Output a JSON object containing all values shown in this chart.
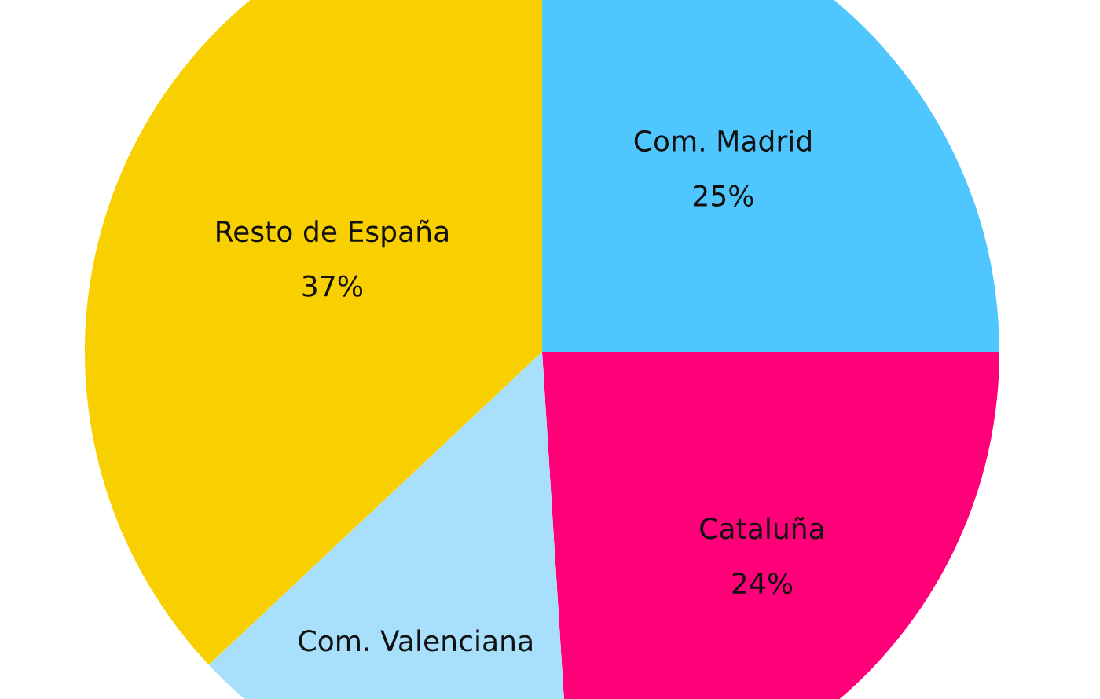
{
  "chart_data": {
    "type": "pie",
    "categories": [
      "Com. Madrid",
      "Cataluña",
      "Com. Valenciana",
      "Resto de España"
    ],
    "values": [
      25,
      24,
      14,
      37
    ],
    "value_labels": [
      "25%",
      "24%",
      null,
      "37%"
    ],
    "colors": [
      "#4fc6fd",
      "#ff0078",
      "#a8e0fc",
      "#f8cf00"
    ],
    "legend": false
  }
}
